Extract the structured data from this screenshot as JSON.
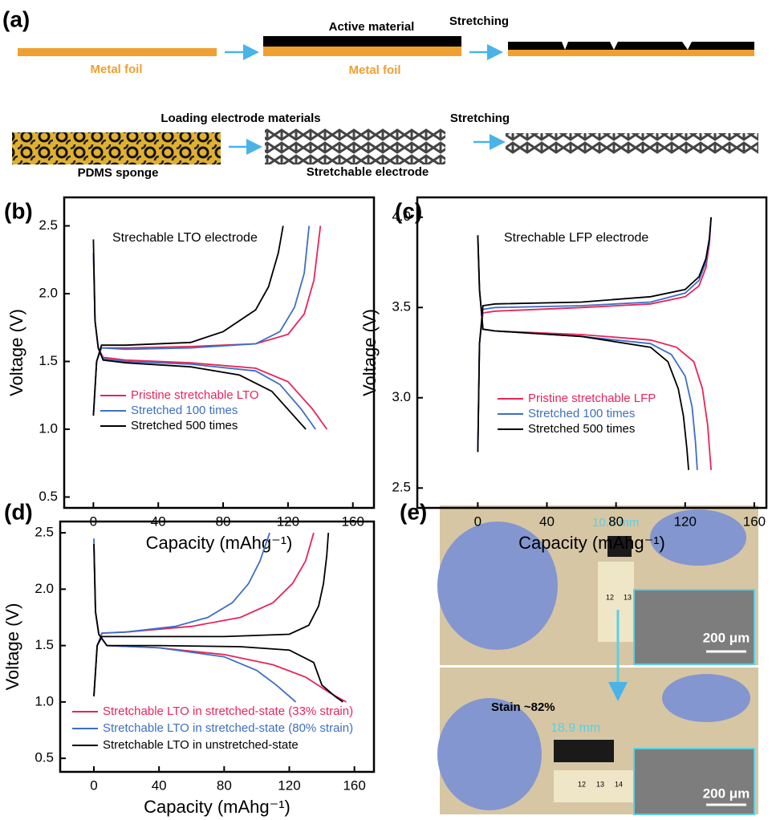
{
  "panel_labels": [
    "(a)",
    "(b)",
    "(c)",
    "(d)",
    "(e)"
  ],
  "schematic": {
    "row1": {
      "metal_foil_1": "Metal foil",
      "active_material": "Active material",
      "stretching": "Stretching",
      "metal_foil_2": "Metal foil"
    },
    "row2": {
      "loading": "Loading electrode materials",
      "stretching": "Stretching",
      "pdms_sponge": "PDMS sponge",
      "stretchable_electrode": "Stretchable electrode"
    }
  },
  "photo": {
    "width_before": "10.4 mm",
    "scale_bar_top": "200 μm",
    "strain": "Stain ~82%",
    "width_after": "18.9 mm",
    "scale_bar_bottom": "200 μm",
    "ruler_top": [
      "12",
      "13"
    ],
    "ruler_bottom": [
      "12",
      "13",
      "14"
    ]
  },
  "chart_data": [
    {
      "type": "line",
      "annotation": "Strechable LTO electrode",
      "x_label": "Capacity (mAhg⁻¹)",
      "y_label": "Voltage (V)",
      "xlim": [
        -18,
        173
      ],
      "xticks": [
        0,
        40,
        80,
        120,
        160
      ],
      "ylim": [
        0.42,
        2.71
      ],
      "yticks": [
        0.5,
        {
          "value": 1,
          "label": "1.0"
        },
        1.5,
        {
          "value": 2,
          "label": "2.0"
        },
        2.5
      ],
      "series": [
        {
          "name": "Pristine stretchable LTO",
          "color": "#e8245a",
          "x": [
            0,
            1,
            3,
            6,
            20,
            60,
            100,
            120,
            135,
            144,
            null,
            0,
            2,
            5,
            20,
            60,
            100,
            120,
            130,
            136,
            140
          ],
          "values": [
            2.3,
            1.8,
            1.6,
            1.53,
            1.51,
            1.49,
            1.45,
            1.35,
            1.15,
            1.0,
            null,
            1.1,
            1.5,
            1.6,
            1.6,
            1.61,
            1.63,
            1.7,
            1.85,
            2.1,
            2.5
          ]
        },
        {
          "name": "Stretched 100 times",
          "color": "#3d6fc4",
          "x": [
            0,
            1,
            3,
            6,
            20,
            60,
            100,
            115,
            128,
            137,
            null,
            0,
            2,
            5,
            20,
            60,
            100,
            115,
            124,
            130,
            133
          ],
          "values": [
            2.3,
            1.8,
            1.6,
            1.52,
            1.5,
            1.48,
            1.43,
            1.33,
            1.15,
            1.0,
            null,
            1.1,
            1.5,
            1.6,
            1.59,
            1.6,
            1.63,
            1.72,
            1.9,
            2.15,
            2.5
          ]
        },
        {
          "name": "Stretched 500 times",
          "color": "#000000",
          "x": [
            0,
            1,
            3,
            6,
            20,
            60,
            90,
            110,
            122,
            131,
            null,
            0,
            2,
            5,
            20,
            60,
            80,
            100,
            108,
            114,
            117
          ],
          "values": [
            2.4,
            1.8,
            1.6,
            1.51,
            1.49,
            1.46,
            1.4,
            1.28,
            1.12,
            1.0,
            null,
            1.1,
            1.5,
            1.62,
            1.62,
            1.64,
            1.72,
            1.88,
            2.05,
            2.3,
            2.5
          ]
        }
      ]
    },
    {
      "type": "line",
      "annotation": "Strechable LFP electrode",
      "x_label": "Capacity (mAhg⁻¹)",
      "y_label": "Voltage (V)",
      "xlim": [
        -35,
        167
      ],
      "xticks": [
        0,
        40,
        80,
        120,
        160
      ],
      "ylim": [
        2.39,
        4.11
      ],
      "yticks": [
        2.5,
        {
          "value": 3,
          "label": "3.0"
        },
        3.5,
        {
          "value": 4,
          "label": "4.0"
        }
      ],
      "series": [
        {
          "name": "Pristine stretchable LFP",
          "color": "#e8245a",
          "x": [
            0,
            1,
            3,
            10,
            60,
            100,
            115,
            125,
            130,
            133,
            135,
            null,
            0,
            1,
            3,
            10,
            60,
            100,
            120,
            128,
            132,
            134,
            135
          ],
          "values": [
            3.9,
            3.6,
            3.38,
            3.37,
            3.35,
            3.32,
            3.28,
            3.2,
            3.05,
            2.85,
            2.6,
            null,
            2.7,
            3.3,
            3.47,
            3.48,
            3.5,
            3.52,
            3.56,
            3.62,
            3.72,
            3.85,
            4.0
          ]
        },
        {
          "name": "Stretched 100 times",
          "color": "#3d6fc4",
          "x": [
            0,
            1,
            3,
            10,
            60,
            100,
            112,
            120,
            124,
            126,
            127,
            null,
            0,
            1,
            3,
            10,
            60,
            100,
            120,
            128,
            132,
            134,
            135
          ],
          "values": [
            3.9,
            3.6,
            3.38,
            3.37,
            3.34,
            3.3,
            3.24,
            3.12,
            2.95,
            2.75,
            2.6,
            null,
            2.7,
            3.3,
            3.49,
            3.5,
            3.51,
            3.53,
            3.58,
            3.65,
            3.75,
            3.87,
            4.0
          ]
        },
        {
          "name": "Stretched 500 times",
          "color": "#000000",
          "x": [
            0,
            1,
            3,
            10,
            60,
            100,
            110,
            116,
            119,
            121,
            122,
            null,
            0,
            1,
            3,
            10,
            60,
            100,
            120,
            128,
            132,
            134,
            135
          ],
          "values": [
            3.9,
            3.6,
            3.38,
            3.37,
            3.34,
            3.28,
            3.2,
            3.05,
            2.9,
            2.72,
            2.6,
            null,
            2.7,
            3.3,
            3.51,
            3.52,
            3.53,
            3.56,
            3.6,
            3.67,
            3.77,
            3.88,
            4.0
          ]
        }
      ]
    },
    {
      "type": "line",
      "x_label": "Capacity (mAhg⁻¹)",
      "y_label": "Voltage (V)",
      "xlim": [
        -20.7,
        172
      ],
      "xticks": [
        0,
        40,
        80,
        120,
        160
      ],
      "ylim": [
        0.38,
        2.6
      ],
      "yticks": [
        0.5,
        {
          "value": 1,
          "label": "1.0"
        },
        1.5,
        {
          "value": 2,
          "label": "2.0"
        },
        2.5
      ],
      "series": [
        {
          "name": "Stretchable LTO in stretched-state (33% strain)",
          "color": "#e8245a",
          "x": [
            0,
            1,
            3,
            8,
            40,
            80,
            110,
            130,
            145,
            155,
            null,
            0,
            2,
            5,
            20,
            60,
            90,
            110,
            122,
            130,
            135
          ],
          "values": [
            2.4,
            1.8,
            1.6,
            1.5,
            1.48,
            1.42,
            1.33,
            1.22,
            1.08,
            1.0,
            null,
            1.05,
            1.5,
            1.61,
            1.62,
            1.67,
            1.75,
            1.88,
            2.05,
            2.25,
            2.5
          ]
        },
        {
          "name": "Stretchable LTO in stretched-state (80% strain)",
          "color": "#3d6fc4",
          "x": [
            0,
            1,
            3,
            8,
            40,
            80,
            100,
            112,
            120,
            124,
            null,
            0,
            2,
            5,
            20,
            50,
            70,
            85,
            95,
            102,
            108
          ],
          "values": [
            2.45,
            1.8,
            1.6,
            1.5,
            1.48,
            1.4,
            1.28,
            1.15,
            1.05,
            1.0,
            null,
            1.05,
            1.5,
            1.61,
            1.62,
            1.67,
            1.75,
            1.88,
            2.05,
            2.25,
            2.5
          ]
        },
        {
          "name": "Stretchable LTO in unstretched-state",
          "color": "#000000",
          "x": [
            0,
            1,
            3,
            8,
            40,
            90,
            120,
            135,
            140,
            148,
            153,
            null,
            0,
            2,
            5,
            20,
            80,
            120,
            132,
            138,
            141,
            143,
            144
          ],
          "values": [
            2.4,
            1.8,
            1.6,
            1.5,
            1.5,
            1.49,
            1.46,
            1.35,
            1.15,
            1.05,
            1.0,
            null,
            1.05,
            1.5,
            1.58,
            1.58,
            1.58,
            1.6,
            1.68,
            1.85,
            2.05,
            2.3,
            2.5
          ]
        }
      ]
    }
  ]
}
